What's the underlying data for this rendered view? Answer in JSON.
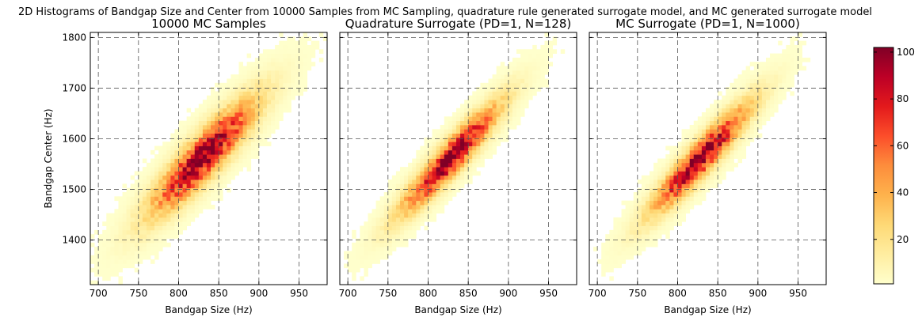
{
  "suptitle": "2D Histograms of Bandgap Size and Center from 10000 Samples from MC Sampling, quadrature rule generated surrogate model, and MC generated surrogate model",
  "chart_data": [
    {
      "type": "heatmap",
      "title": "10000 MC Samples",
      "xlabel": "Bandgap Size (Hz)",
      "ylabel": "Bandgap Center (Hz)",
      "xlim": [
        690,
        985
      ],
      "ylim": [
        1312,
        1810
      ],
      "xticks": [
        700,
        750,
        800,
        850,
        900,
        950
      ],
      "yticks": [
        1400,
        1500,
        1600,
        1700,
        1800
      ],
      "grid": true,
      "bins": {
        "x_bin_width": 5,
        "y_bin_width": 8.3
      },
      "density_model": {
        "center": [
          831,
          1565
        ],
        "sd_size": 43,
        "sd_center": 74,
        "correlation": 0.89,
        "peak_count": 100
      },
      "samples": 10000
    },
    {
      "type": "heatmap",
      "title": "Quadrature Surrogate (PD=1, N=128)",
      "xlabel": "Bandgap Size (Hz)",
      "ylabel": "",
      "xlim": [
        690,
        985
      ],
      "ylim": [
        1312,
        1810
      ],
      "xticks": [
        700,
        750,
        800,
        850,
        900,
        950
      ],
      "yticks": [
        1400,
        1500,
        1600,
        1700,
        1800
      ],
      "grid": true,
      "bins": {
        "x_bin_width": 5,
        "y_bin_width": 8.3
      },
      "density_model": {
        "center": [
          828,
          1562
        ],
        "sd_size": 40,
        "sd_center": 70,
        "correlation": 0.93,
        "peak_count": 100
      },
      "samples": 10000
    },
    {
      "type": "heatmap",
      "title": "MC Surrogate (PD=1, N=1000)",
      "xlabel": "Bandgap Size (Hz)",
      "ylabel": "",
      "xlim": [
        690,
        985
      ],
      "ylim": [
        1312,
        1810
      ],
      "xticks": [
        700,
        750,
        800,
        850,
        900,
        950
      ],
      "yticks": [
        1400,
        1500,
        1600,
        1700,
        1800
      ],
      "grid": true,
      "bins": {
        "x_bin_width": 5,
        "y_bin_width": 8.3
      },
      "density_model": {
        "center": [
          829,
          1562
        ],
        "sd_size": 40,
        "sd_center": 70,
        "correlation": 0.93,
        "peak_count": 100
      },
      "samples": 10000
    }
  ],
  "colorbar": {
    "colormap": "YlOrRd",
    "min": 1,
    "max": 102,
    "ticks": [
      20,
      40,
      60,
      80,
      100
    ],
    "colors": [
      "#ffffcc",
      "#ffeda0",
      "#fed976",
      "#feb24c",
      "#fd8d3c",
      "#fc4e2a",
      "#e31a1c",
      "#bd0026",
      "#800026"
    ]
  }
}
